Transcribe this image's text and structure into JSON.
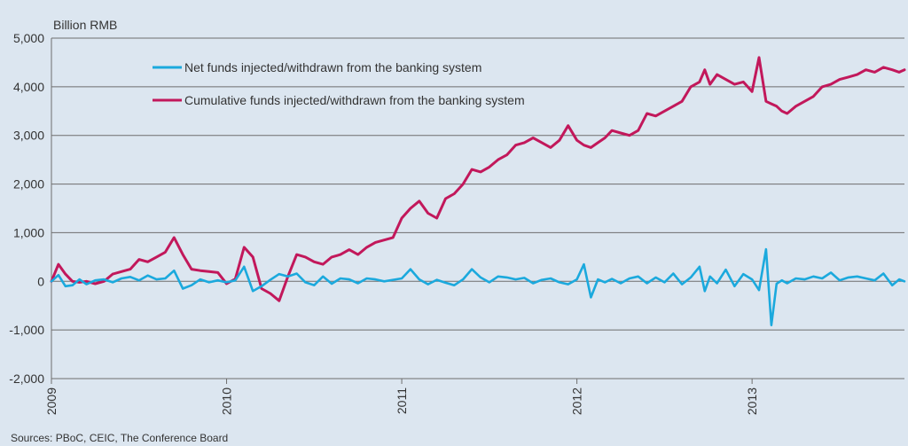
{
  "chart_data": {
    "type": "line",
    "unit_label": "Billion RMB",
    "source": "Sources: PBoC, CEIC, The Conference Board",
    "ylim": [
      -2000,
      5000
    ],
    "yticks": [
      -2000,
      -1000,
      0,
      1000,
      2000,
      3000,
      4000,
      5000
    ],
    "ytick_labels": [
      "-2,000",
      "-1,000",
      "0",
      "1,000",
      "2,000",
      "3,000",
      "4,000",
      "5,000"
    ],
    "xlim": [
      2009.0,
      2013.87
    ],
    "xticks": [
      2009,
      2010,
      2011,
      2012,
      2013
    ],
    "xtick_labels": [
      "2009",
      "2010",
      "2011",
      "2012",
      "2013"
    ],
    "grid": "horizontal",
    "legend_position": "top-left",
    "series": [
      {
        "name": "Net funds injected/withdrawn from the banking system",
        "color": "#1ba9dd",
        "x": [
          2009.0,
          2009.04,
          2009.08,
          2009.12,
          2009.16,
          2009.2,
          2009.25,
          2009.3,
          2009.35,
          2009.4,
          2009.45,
          2009.5,
          2009.55,
          2009.6,
          2009.65,
          2009.7,
          2009.75,
          2009.8,
          2009.85,
          2009.9,
          2009.95,
          2010.0,
          2010.05,
          2010.1,
          2010.15,
          2010.2,
          2010.25,
          2010.3,
          2010.35,
          2010.4,
          2010.45,
          2010.5,
          2010.55,
          2010.6,
          2010.65,
          2010.7,
          2010.75,
          2010.8,
          2010.85,
          2010.9,
          2010.95,
          2011.0,
          2011.05,
          2011.1,
          2011.15,
          2011.2,
          2011.25,
          2011.3,
          2011.35,
          2011.4,
          2011.45,
          2011.5,
          2011.55,
          2011.6,
          2011.65,
          2011.7,
          2011.75,
          2011.8,
          2011.85,
          2011.9,
          2011.95,
          2012.0,
          2012.04,
          2012.08,
          2012.12,
          2012.16,
          2012.2,
          2012.25,
          2012.3,
          2012.35,
          2012.4,
          2012.45,
          2012.5,
          2012.55,
          2012.6,
          2012.65,
          2012.7,
          2012.73,
          2012.76,
          2012.8,
          2012.85,
          2012.9,
          2012.95,
          2013.0,
          2013.04,
          2013.08,
          2013.11,
          2013.14,
          2013.17,
          2013.2,
          2013.25,
          2013.3,
          2013.35,
          2013.4,
          2013.45,
          2013.5,
          2013.55,
          2013.6,
          2013.65,
          2013.7,
          2013.75,
          2013.8,
          2013.84,
          2013.87
        ],
        "values": [
          0,
          130,
          -100,
          -80,
          40,
          -60,
          20,
          40,
          -20,
          60,
          90,
          20,
          120,
          40,
          60,
          220,
          -150,
          -80,
          40,
          -20,
          20,
          -20,
          20,
          300,
          -200,
          -100,
          30,
          150,
          100,
          160,
          -20,
          -80,
          100,
          -50,
          60,
          40,
          -40,
          60,
          40,
          0,
          30,
          60,
          250,
          40,
          -60,
          30,
          -30,
          -80,
          40,
          250,
          80,
          -20,
          100,
          80,
          40,
          70,
          -40,
          30,
          60,
          -20,
          -60,
          40,
          350,
          -330,
          40,
          -20,
          50,
          -40,
          60,
          100,
          -40,
          80,
          -20,
          160,
          -60,
          80,
          300,
          -200,
          100,
          -40,
          240,
          -100,
          150,
          40,
          -180,
          660,
          -900,
          -50,
          20,
          -40,
          60,
          40,
          100,
          60,
          180,
          20,
          80,
          100,
          60,
          20,
          160,
          -80,
          40,
          0
        ]
      },
      {
        "name": "Cumulative funds injected/withdrawn from the banking system",
        "color": "#c2185b",
        "x": [
          2009.0,
          2009.04,
          2009.08,
          2009.12,
          2009.16,
          2009.2,
          2009.25,
          2009.3,
          2009.35,
          2009.4,
          2009.45,
          2009.5,
          2009.55,
          2009.6,
          2009.65,
          2009.7,
          2009.75,
          2009.8,
          2009.85,
          2009.9,
          2009.95,
          2010.0,
          2010.05,
          2010.1,
          2010.15,
          2010.2,
          2010.25,
          2010.3,
          2010.35,
          2010.4,
          2010.45,
          2010.5,
          2010.55,
          2010.6,
          2010.65,
          2010.7,
          2010.75,
          2010.8,
          2010.85,
          2010.9,
          2010.95,
          2011.0,
          2011.05,
          2011.1,
          2011.15,
          2011.2,
          2011.25,
          2011.3,
          2011.35,
          2011.4,
          2011.45,
          2011.5,
          2011.55,
          2011.6,
          2011.65,
          2011.7,
          2011.75,
          2011.8,
          2011.85,
          2011.9,
          2011.95,
          2012.0,
          2012.04,
          2012.08,
          2012.12,
          2012.16,
          2012.2,
          2012.25,
          2012.3,
          2012.35,
          2012.4,
          2012.45,
          2012.5,
          2012.55,
          2012.6,
          2012.65,
          2012.7,
          2012.73,
          2012.76,
          2012.8,
          2012.85,
          2012.9,
          2012.95,
          2013.0,
          2013.04,
          2013.08,
          2013.11,
          2013.14,
          2013.17,
          2013.2,
          2013.25,
          2013.3,
          2013.35,
          2013.4,
          2013.45,
          2013.5,
          2013.55,
          2013.6,
          2013.65,
          2013.7,
          2013.75,
          2013.8,
          2013.84,
          2013.87
        ],
        "values": [
          0,
          350,
          150,
          0,
          -20,
          0,
          -50,
          0,
          150,
          200,
          250,
          450,
          400,
          500,
          600,
          900,
          550,
          250,
          220,
          200,
          180,
          -50,
          50,
          700,
          500,
          -150,
          -250,
          -400,
          100,
          550,
          500,
          400,
          350,
          500,
          550,
          650,
          550,
          700,
          800,
          850,
          900,
          1300,
          1500,
          1650,
          1400,
          1300,
          1700,
          1800,
          2000,
          2300,
          2250,
          2350,
          2500,
          2600,
          2800,
          2850,
          2950,
          2850,
          2750,
          2900,
          3200,
          2900,
          2800,
          2750,
          2850,
          2950,
          3100,
          3050,
          3000,
          3100,
          3450,
          3400,
          3500,
          3600,
          3700,
          4000,
          4100,
          4350,
          4050,
          4250,
          4150,
          4050,
          4100,
          3900,
          4600,
          3700,
          3650,
          3600,
          3500,
          3450,
          3600,
          3700,
          3800,
          4000,
          4050,
          4150,
          4200,
          4250,
          4350,
          4300,
          4400,
          4350,
          4300,
          4350
        ]
      }
    ]
  }
}
